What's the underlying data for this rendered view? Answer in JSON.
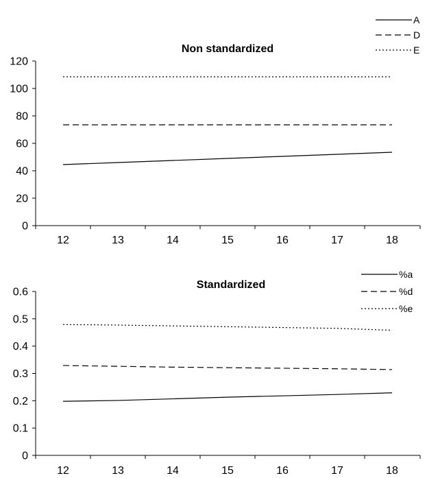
{
  "chart_data": [
    {
      "type": "line",
      "title": "Non standardized",
      "xlabel": "",
      "ylabel": "",
      "x": [
        12,
        13,
        14,
        15,
        16,
        17,
        18
      ],
      "ylim": [
        0,
        120
      ],
      "yticks": [
        0,
        20,
        40,
        60,
        80,
        100,
        120
      ],
      "grid": false,
      "legend_position": "top-right",
      "series": [
        {
          "name": "A",
          "style": "solid",
          "values": [
            44.5,
            46.0,
            47.5,
            49.0,
            50.5,
            52.0,
            53.5
          ]
        },
        {
          "name": "D",
          "style": "dashed",
          "values": [
            73.5,
            73.5,
            73.5,
            73.5,
            73.5,
            73.5,
            73.5
          ]
        },
        {
          "name": "E",
          "style": "dotted",
          "values": [
            108.5,
            108.5,
            108.5,
            108.5,
            108.5,
            108.5,
            108.5
          ]
        }
      ]
    },
    {
      "type": "line",
      "title": "Standardized",
      "xlabel": "",
      "ylabel": "",
      "x": [
        12,
        13,
        14,
        15,
        16,
        17,
        18
      ],
      "ylim": [
        0,
        0.6
      ],
      "yticks": [
        0,
        0.1,
        0.2,
        0.3,
        0.4,
        0.5,
        0.6
      ],
      "grid": false,
      "legend_position": "top-right",
      "series": [
        {
          "name": "%a",
          "style": "solid",
          "values": [
            0.198,
            0.201,
            0.207,
            0.213,
            0.218,
            0.223,
            0.229
          ]
        },
        {
          "name": "%d",
          "style": "dashed",
          "values": [
            0.329,
            0.326,
            0.323,
            0.321,
            0.319,
            0.317,
            0.314
          ]
        },
        {
          "name": "%e",
          "style": "dotted",
          "values": [
            0.479,
            0.477,
            0.474,
            0.471,
            0.468,
            0.465,
            0.458
          ]
        }
      ]
    }
  ]
}
